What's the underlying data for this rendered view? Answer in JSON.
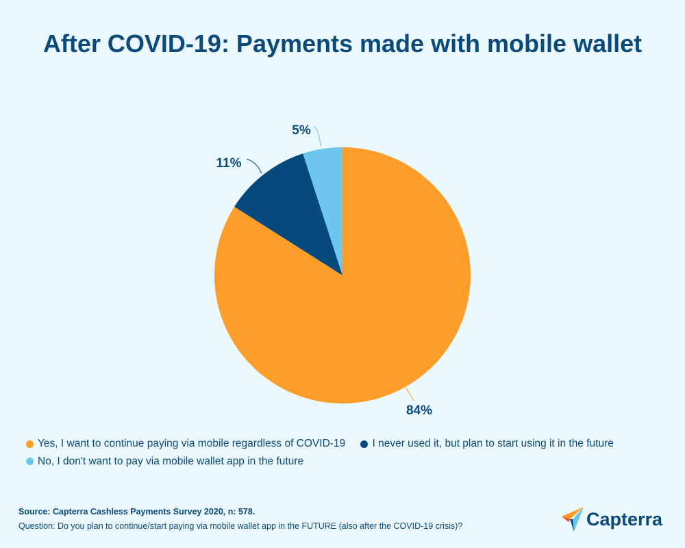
{
  "title": "After COVID-19: Payments made with mobile wallet",
  "chart_data": {
    "type": "pie",
    "title": "After COVID-19: Payments made with mobile wallet",
    "categories": [
      "Yes, I want to continue paying via mobile regardless of COVID-19",
      "I never used it, but plan to start using it in the future",
      "No, I don't want to pay via mobile wallet app in the future"
    ],
    "values": [
      84,
      11,
      5
    ],
    "labels": [
      "84%",
      "11%",
      "5%"
    ],
    "colors": [
      "#fd9e2b",
      "#054a7d",
      "#6dc6ed"
    ],
    "legend_position": "bottom"
  },
  "legend": {
    "items": [
      {
        "label": "Yes, I want to continue paying via mobile regardless of COVID-19",
        "color": "#fd9e2b"
      },
      {
        "label": "I never used it, but plan to start using it in the future",
        "color": "#054a7d"
      },
      {
        "label": "No, I don't want to pay via mobile wallet app in the future",
        "color": "#6dc6ed"
      }
    ]
  },
  "footer": {
    "source": "Source: Capterra Cashless Payments Survey 2020, n: 578.",
    "question": "Question: Do you plan to continue/start paying via mobile wallet app in the FUTURE (also after the COVID-19 crisis)?"
  },
  "logo": {
    "text": "Capterra"
  }
}
